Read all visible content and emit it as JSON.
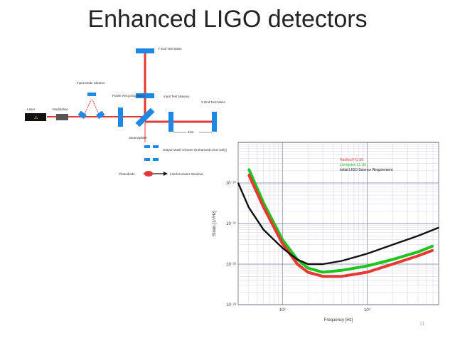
{
  "slide": {
    "title": "Enhanced LIGO detectors",
    "slide_number": "11"
  },
  "diagram": {
    "labels": {
      "laser": "Laser",
      "modulation": "Modulation",
      "input_mode_cleaner": "Input Mode Cleaner",
      "power_recycling_mirror": "Power Recycling Mirror",
      "beamsplitter": "Beamsplitter",
      "input_test_masses": "Input Test Masses",
      "y_end_test_mass": "Y End Test Mass",
      "x_end_test_mass": "X End Test Mass",
      "arm_length": "4km",
      "output_mode_cleaner": "Output Mode Cleaner (Enhanced LIGO Only)",
      "photodiode": "Photodiode",
      "readout": "Interferometer Readout"
    },
    "colors": {
      "mirror": "#1e88e5",
      "beam": "#e53935",
      "laser": "#111111"
    }
  },
  "chart_data": {
    "type": "line",
    "title": "",
    "xlabel": "Frequency [Hz]",
    "ylabel": "Strain [1/√Hz]",
    "x_scale": "log",
    "y_scale": "log",
    "xlim": [
      30,
      7000
    ],
    "ylim": [
      1e-23,
      1e-19
    ],
    "x_ticks": [
      "10²",
      "10³"
    ],
    "y_ticks": [
      "10⁻²⁰",
      "10⁻²¹",
      "10⁻²²",
      "10⁻²³"
    ],
    "grid": true,
    "legend_position": "top-right",
    "series": [
      {
        "name": "Hanford H1 S6",
        "color": "#e53935",
        "x": [
          40,
          60,
          100,
          150,
          200,
          300,
          500,
          1000,
          2000,
          4000,
          6000
        ],
        "y": [
          1.6e-20,
          2.5e-21,
          3.2e-22,
          1e-22,
          6.3e-23,
          5e-23,
          5e-23,
          6.3e-23,
          1e-22,
          1.6e-22,
          2.2e-22
        ]
      },
      {
        "name": "Livingston L1 S6",
        "color": "#1ec51e",
        "x": [
          40,
          60,
          100,
          150,
          200,
          300,
          500,
          1000,
          2000,
          4000,
          6000
        ],
        "y": [
          2.2e-20,
          3.2e-21,
          4e-22,
          1.3e-22,
          8e-23,
          6.3e-23,
          7e-23,
          9e-23,
          1.3e-22,
          2e-22,
          2.8e-22
        ]
      },
      {
        "name": "Initial LIGO Science Requirement",
        "color": "#111111",
        "x": [
          30,
          40,
          60,
          100,
          150,
          200,
          300,
          500,
          1000,
          2000,
          4000,
          7000
        ],
        "y": [
          1e-20,
          2.5e-21,
          7e-22,
          2.5e-22,
          1.3e-22,
          1e-22,
          1e-22,
          1.2e-22,
          1.8e-22,
          3e-22,
          5e-22,
          7.9e-22
        ]
      }
    ]
  }
}
